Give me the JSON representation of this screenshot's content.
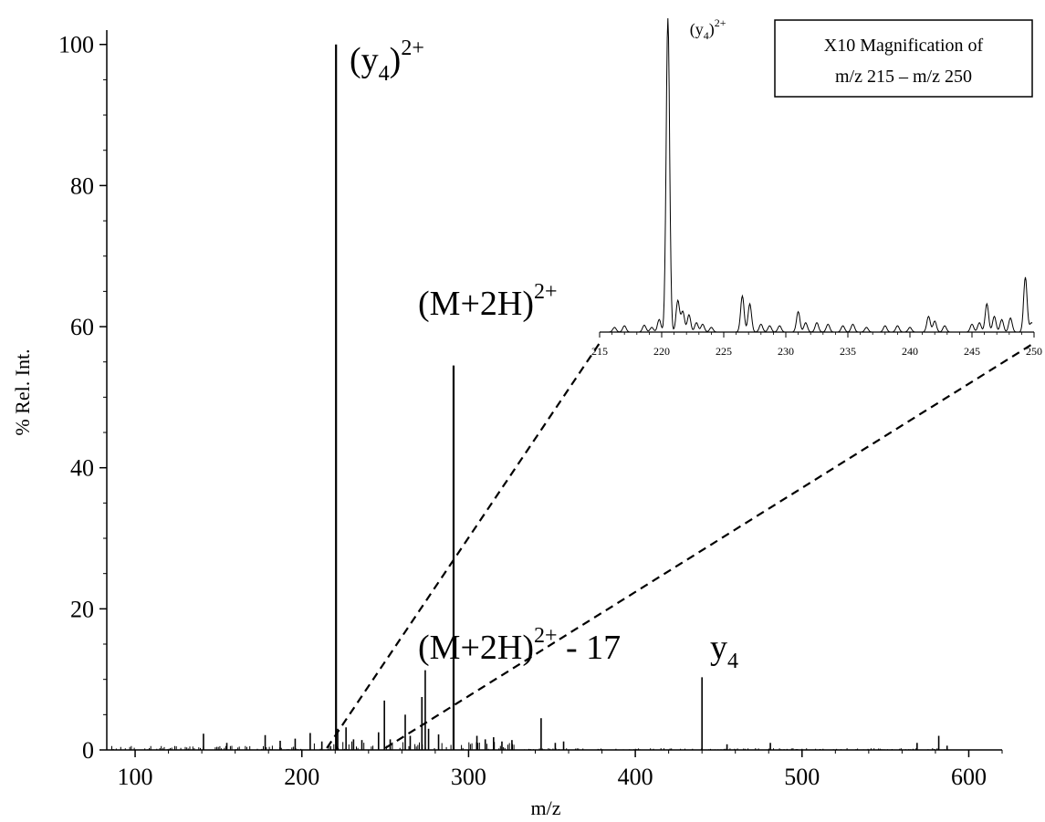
{
  "chart_data": {
    "type": "line",
    "xlabel": "m/z",
    "ylabel": "% Rel. Int.",
    "xlim": [
      83,
      620
    ],
    "ylim": [
      0,
      101
    ],
    "x_ticks": [
      100,
      200,
      300,
      400,
      500,
      600
    ],
    "y_ticks": [
      0,
      20,
      40,
      60,
      80,
      100
    ],
    "grid": false,
    "peaks": [
      {
        "x": 141,
        "y": 2.3
      },
      {
        "x": 155,
        "y": 1.0
      },
      {
        "x": 178,
        "y": 2.1
      },
      {
        "x": 187,
        "y": 1.3
      },
      {
        "x": 196,
        "y": 1.6
      },
      {
        "x": 205,
        "y": 2.4
      },
      {
        "x": 212,
        "y": 1.2
      },
      {
        "x": 220.5,
        "y": 100
      },
      {
        "x": 221.5,
        "y": 3.0
      },
      {
        "x": 226.5,
        "y": 3.2
      },
      {
        "x": 231,
        "y": 1.5
      },
      {
        "x": 236,
        "y": 1.4
      },
      {
        "x": 246,
        "y": 2.5
      },
      {
        "x": 249.5,
        "y": 7.0
      },
      {
        "x": 253,
        "y": 1.5
      },
      {
        "x": 262,
        "y": 5.0
      },
      {
        "x": 265,
        "y": 2.0
      },
      {
        "x": 272,
        "y": 7.5
      },
      {
        "x": 274,
        "y": 11.3
      },
      {
        "x": 276,
        "y": 3.0
      },
      {
        "x": 282,
        "y": 2.2
      },
      {
        "x": 291,
        "y": 54.5
      },
      {
        "x": 305,
        "y": 2.0
      },
      {
        "x": 310,
        "y": 1.5
      },
      {
        "x": 315,
        "y": 1.8
      },
      {
        "x": 320,
        "y": 1.2
      },
      {
        "x": 326,
        "y": 1.4
      },
      {
        "x": 343.5,
        "y": 4.5
      },
      {
        "x": 352,
        "y": 1.0
      },
      {
        "x": 357,
        "y": 1.2
      },
      {
        "x": 440,
        "y": 10.3
      },
      {
        "x": 455,
        "y": 0.8
      },
      {
        "x": 481,
        "y": 1.0
      },
      {
        "x": 569,
        "y": 1.0
      },
      {
        "x": 582,
        "y": 2.0
      },
      {
        "x": 587,
        "y": 0.6
      }
    ],
    "annotations": [
      {
        "x": 220.5,
        "y": 100,
        "label": "(y",
        "sub": "4",
        "close": ")",
        "sup": "2+"
      },
      {
        "x": 291,
        "y": 54.5,
        "label": "(M+2H)",
        "sup": "2+"
      },
      {
        "x": 274,
        "y": 11.3,
        "label": "(M+2H)",
        "sup": "2+",
        "suffix": " - 17"
      },
      {
        "x": 440,
        "y": 10.3,
        "label": "y",
        "sub": "4"
      }
    ],
    "inset": {
      "title_lines": [
        "X10 Magnification of",
        "m/z 215 – m/z 250"
      ],
      "xlim": [
        215,
        250
      ],
      "x_ticks": [
        215,
        220,
        225,
        230,
        235,
        240,
        245,
        250
      ],
      "zoom_from": [
        215,
        250
      ],
      "annotation": {
        "x": 220.5,
        "label": "(y",
        "sub": "4",
        "close": ")",
        "sup": "2+"
      },
      "peaks": [
        {
          "x": 216.2,
          "y": 1.5
        },
        {
          "x": 217.0,
          "y": 2.0
        },
        {
          "x": 218.6,
          "y": 2.2
        },
        {
          "x": 219.2,
          "y": 1.5
        },
        {
          "x": 219.8,
          "y": 4.0
        },
        {
          "x": 220.5,
          "y": 100
        },
        {
          "x": 221.3,
          "y": 10
        },
        {
          "x": 221.7,
          "y": 6.5
        },
        {
          "x": 222.2,
          "y": 5.5
        },
        {
          "x": 222.8,
          "y": 3.0
        },
        {
          "x": 223.3,
          "y": 2.5
        },
        {
          "x": 224.0,
          "y": 1.5
        },
        {
          "x": 226.5,
          "y": 11.5
        },
        {
          "x": 227.1,
          "y": 9.0
        },
        {
          "x": 228.0,
          "y": 2.5
        },
        {
          "x": 228.7,
          "y": 2.0
        },
        {
          "x": 229.5,
          "y": 2.0
        },
        {
          "x": 231.0,
          "y": 6.5
        },
        {
          "x": 231.6,
          "y": 3.0
        },
        {
          "x": 232.5,
          "y": 3.0
        },
        {
          "x": 233.4,
          "y": 2.5
        },
        {
          "x": 234.6,
          "y": 2.0
        },
        {
          "x": 235.4,
          "y": 2.5
        },
        {
          "x": 236.5,
          "y": 1.5
        },
        {
          "x": 238.0,
          "y": 2.0
        },
        {
          "x": 239.0,
          "y": 2.0
        },
        {
          "x": 240.0,
          "y": 1.5
        },
        {
          "x": 241.5,
          "y": 5.0
        },
        {
          "x": 242.0,
          "y": 3.5
        },
        {
          "x": 242.8,
          "y": 2.0
        },
        {
          "x": 245.0,
          "y": 2.5
        },
        {
          "x": 245.6,
          "y": 3.0
        },
        {
          "x": 246.2,
          "y": 9.0
        },
        {
          "x": 246.8,
          "y": 5.0
        },
        {
          "x": 247.4,
          "y": 4.0
        },
        {
          "x": 248.1,
          "y": 4.5
        },
        {
          "x": 249.3,
          "y": 17.5
        },
        {
          "x": 249.8,
          "y": 3.0
        }
      ]
    }
  }
}
